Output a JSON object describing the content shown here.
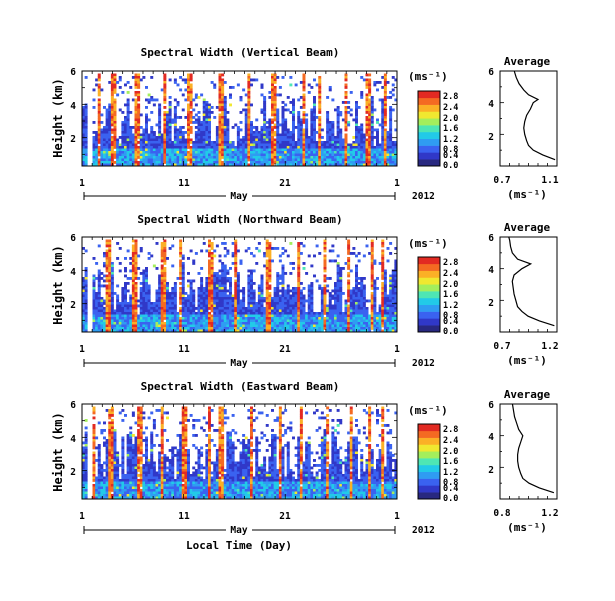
{
  "figure": {
    "month_label": "May",
    "year_label": "2012",
    "bottom_xlabel": "Local Time (Day)",
    "ylabel": "Height (km)",
    "profile_title": "Average",
    "unit_label": "(ms⁻¹)"
  },
  "chart_data": [
    {
      "type": "heatmap",
      "title": "Spectral Width (Vertical Beam)",
      "xlabel": "May",
      "ylabel": "Height (km)",
      "x_ticklabels": [
        "1",
        "11",
        "21",
        "1"
      ],
      "x_range_days": [
        1,
        32
      ],
      "ylim_km": [
        0.3,
        6
      ],
      "y_ticklabels": [
        "2",
        "4",
        "6"
      ],
      "colorbar": {
        "label": "(ms⁻¹)",
        "range": [
          0.0,
          2.8
        ],
        "ticklabels": [
          "0.0",
          "0.4",
          "0.8",
          "1.2",
          "1.6",
          "2.0",
          "2.4",
          "2.8"
        ],
        "colors": [
          "#282880",
          "#3038c8",
          "#3a62f0",
          "#2f9cf2",
          "#22cae8",
          "#4ee6b4",
          "#a4ee5c",
          "#f0e830",
          "#fbb026",
          "#f46a22",
          "#e22a22"
        ]
      },
      "average_profile": {
        "title": "Average",
        "xlabel": "(ms⁻¹)",
        "x_ticklabels": [
          "0.7",
          "1.1"
        ],
        "xlim": [
          0.6,
          1.2
        ],
        "ylim_km": [
          0,
          6
        ],
        "heights_km": [
          0.4,
          0.7,
          1.0,
          1.3,
          1.6,
          2.0,
          2.4,
          2.8,
          3.2,
          3.6,
          4.0,
          4.2,
          4.5,
          4.8,
          5.2,
          5.6,
          6.0
        ],
        "values": [
          1.18,
          1.05,
          0.95,
          0.9,
          0.88,
          0.86,
          0.85,
          0.86,
          0.88,
          0.92,
          0.95,
          1.0,
          0.9,
          0.85,
          0.8,
          0.77,
          0.75
        ]
      }
    },
    {
      "type": "heatmap",
      "title": "Spectral Width (Northward Beam)",
      "xlabel": "May",
      "ylabel": "Height (km)",
      "x_ticklabels": [
        "1",
        "11",
        "21",
        "1"
      ],
      "x_range_days": [
        1,
        32
      ],
      "ylim_km": [
        0.3,
        6
      ],
      "y_ticklabels": [
        "2",
        "4",
        "6"
      ],
      "colorbar": {
        "label": "(ms⁻¹)",
        "range": [
          0.0,
          2.8
        ],
        "ticklabels": [
          "0.0",
          "0.4",
          "0.8",
          "1.2",
          "1.6",
          "2.0",
          "2.4",
          "2.8"
        ],
        "colors": [
          "#282880",
          "#3038c8",
          "#3a62f0",
          "#2f9cf2",
          "#22cae8",
          "#4ee6b4",
          "#a4ee5c",
          "#f0e830",
          "#fbb026",
          "#f46a22",
          "#e22a22"
        ]
      },
      "average_profile": {
        "title": "Average",
        "xlabel": "(ms⁻¹)",
        "x_ticklabels": [
          "0.7",
          "1.2"
        ],
        "xlim": [
          0.6,
          1.25
        ],
        "ylim_km": [
          0,
          6
        ],
        "heights_km": [
          0.4,
          0.7,
          1.0,
          1.3,
          1.6,
          2.0,
          2.4,
          2.8,
          3.2,
          3.6,
          4.0,
          4.3,
          4.6,
          5.0,
          5.4,
          5.8,
          6.0
        ],
        "values": [
          1.22,
          1.05,
          0.92,
          0.85,
          0.8,
          0.78,
          0.76,
          0.75,
          0.74,
          0.76,
          0.85,
          0.95,
          0.8,
          0.74,
          0.72,
          0.71,
          0.7
        ]
      }
    },
    {
      "type": "heatmap",
      "title": "Spectral Width (Eastward Beam)",
      "xlabel": "May",
      "ylabel": "Height (km)",
      "x_ticklabels": [
        "1",
        "11",
        "21",
        "1"
      ],
      "x_range_days": [
        1,
        32
      ],
      "ylim_km": [
        0.3,
        6
      ],
      "y_ticklabels": [
        "2",
        "4",
        "6"
      ],
      "colorbar": {
        "label": "(ms⁻¹)",
        "range": [
          0.0,
          2.8
        ],
        "ticklabels": [
          "0.0",
          "0.4",
          "0.8",
          "1.2",
          "1.6",
          "2.0",
          "2.4",
          "2.8"
        ],
        "colors": [
          "#282880",
          "#3038c8",
          "#3a62f0",
          "#2f9cf2",
          "#22cae8",
          "#4ee6b4",
          "#a4ee5c",
          "#f0e830",
          "#fbb026",
          "#f46a22",
          "#e22a22"
        ]
      },
      "average_profile": {
        "title": "Average",
        "xlabel": "(ms⁻¹)",
        "x_ticklabels": [
          "0.8",
          "1.2"
        ],
        "xlim": [
          0.7,
          1.25
        ],
        "ylim_km": [
          0,
          6
        ],
        "heights_km": [
          0.4,
          0.7,
          1.0,
          1.3,
          1.6,
          2.0,
          2.4,
          2.8,
          3.2,
          3.6,
          4.0,
          4.4,
          4.8,
          5.2,
          5.6,
          6.0
        ],
        "values": [
          1.22,
          1.08,
          0.98,
          0.92,
          0.9,
          0.88,
          0.87,
          0.87,
          0.88,
          0.9,
          0.92,
          0.88,
          0.86,
          0.84,
          0.83,
          0.82
        ]
      }
    }
  ]
}
